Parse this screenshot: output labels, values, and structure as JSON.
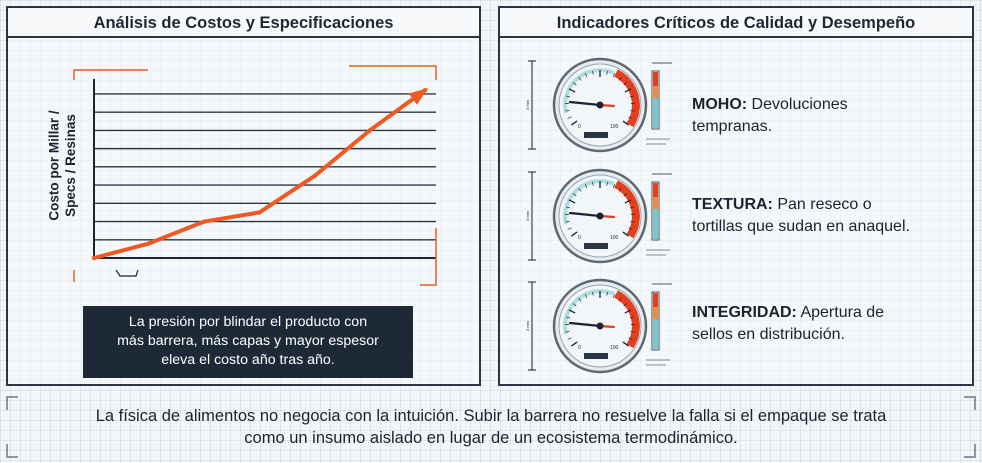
{
  "left_panel": {
    "title": "Análisis de Costos y Especificaciones",
    "caption_lines": [
      "La presión por blindar el producto con",
      "más barrera, más capas y mayor espesor",
      "eleva el costo año tras año."
    ]
  },
  "right_panel": {
    "title": "Indicadores Críticos de Calidad y Desempeño",
    "indicators": [
      {
        "label": "MOHO:",
        "text_line1": " Devoluciones",
        "text_line2": "tempranas."
      },
      {
        "label": "TEXTURA:",
        "text_line1": " Pan reseco o",
        "text_line2": "tortillas que sudan en anaquel."
      },
      {
        "label": "INTEGRIDAD:",
        "text_line1": " Apertura de",
        "text_line2": "sellos en distribución."
      }
    ],
    "gauge_scale": {
      "min_label": "0",
      "max_label": "100",
      "side_label": "3 mm"
    }
  },
  "footer": {
    "line1": "La física de alimentos no negocia con la intuición. Subir la barrera no resuelve la falla si el empaque se trata",
    "line2": "como un insumo aislado en lugar de un ecosistema termodinámico."
  },
  "chart_data": {
    "type": "line",
    "title": "",
    "ylabel": "Costo por Millar / Specs / Resinas",
    "xlabel": "",
    "x": [
      0,
      1,
      2,
      3,
      4,
      5,
      6
    ],
    "y": [
      0,
      0.8,
      2.0,
      2.5,
      4.5,
      7.0,
      9.2
    ],
    "xlim": [
      0,
      6.2
    ],
    "ylim": [
      0,
      9.6
    ],
    "grid": true,
    "series": [
      {
        "values": [
          0,
          0.8,
          2.0,
          2.5,
          4.5,
          7.0,
          9.2
        ],
        "color": "#ef5a24"
      }
    ]
  },
  "colors": {
    "accent": "#ef5a24",
    "dark": "#1d2937",
    "gauge_face": "#f2f6f8",
    "gauge_rim": "#5d6873",
    "gauge_red": "#e2401f",
    "gauge_teal": "#74c9cc"
  }
}
